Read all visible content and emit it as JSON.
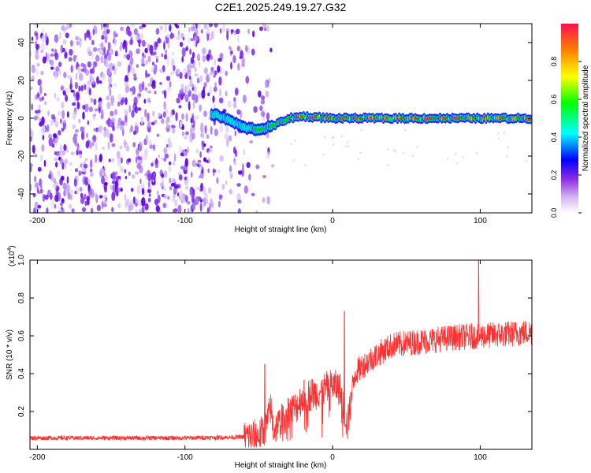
{
  "title": "C2E1.2025.249.19.27.G32",
  "chart_data": [
    {
      "type": "heatmap",
      "xlabel": "Height of straight line (km)",
      "ylabel": "Frequency (Hz)",
      "xlim": [
        -205,
        135
      ],
      "ylim": [
        -50,
        50
      ],
      "x_ticks": [
        -200,
        -100,
        0,
        100
      ],
      "y_ticks": [
        -40,
        -20,
        0,
        20,
        40
      ],
      "colorbar": {
        "label": "Normalized spectral amplitude",
        "range": [
          0,
          1
        ],
        "ticks": [
          "0.0",
          "0.2",
          "0.4",
          "0.6",
          "0.8"
        ],
        "colormap": [
          "#ffffff",
          "#8a2be2",
          "#0000ff",
          "#00ffff",
          "#00ff00",
          "#ffff00",
          "#ff8000",
          "#ff0000"
        ]
      },
      "ridge": {
        "x": [
          -80,
          -70,
          -60,
          -50,
          -40,
          -30,
          -20,
          0,
          20,
          40,
          60,
          80,
          100,
          120,
          135
        ],
        "y": [
          2,
          -1,
          -5,
          -6,
          -4,
          0,
          1,
          0,
          0,
          0,
          0,
          0,
          0,
          0,
          0
        ]
      },
      "noise_region_x": [
        -205,
        -50
      ],
      "grid": false
    },
    {
      "type": "line",
      "xlabel": "Height of straight line (km)",
      "ylabel": "SNR (10 * v/v)",
      "y_scale_label": "(x10",
      "y_scale_exponent": "4",
      "y_scale_suffix": ")",
      "xlim": [
        -205,
        135
      ],
      "ylim": [
        0,
        1.0
      ],
      "x_ticks": [
        -200,
        -100,
        0,
        100
      ],
      "y_ticks": [
        0.2,
        0.4,
        0.6,
        0.8,
        1.0
      ],
      "y_tick_labels": [
        "0.2",
        "0.4",
        "0.6",
        "0.8",
        "1.0"
      ],
      "color": "#ff3030",
      "series_trend": {
        "x": [
          -205,
          -100,
          -60,
          -50,
          -45,
          -42,
          -40,
          -35,
          -30,
          -25,
          -20,
          -10,
          0,
          5,
          10,
          15,
          20,
          30,
          40,
          60,
          80,
          100,
          120,
          135
        ],
        "y": [
          0.06,
          0.06,
          0.065,
          0.07,
          0.12,
          0.22,
          0.1,
          0.15,
          0.2,
          0.22,
          0.28,
          0.3,
          0.34,
          0.32,
          0.12,
          0.4,
          0.44,
          0.5,
          0.55,
          0.57,
          0.59,
          0.6,
          0.61,
          0.62
        ]
      },
      "spikes": [
        {
          "x": -46,
          "y": 0.45
        },
        {
          "x": 8,
          "y": 0.73
        },
        {
          "x": 99,
          "y": 1.0
        }
      ],
      "grid": false
    }
  ]
}
